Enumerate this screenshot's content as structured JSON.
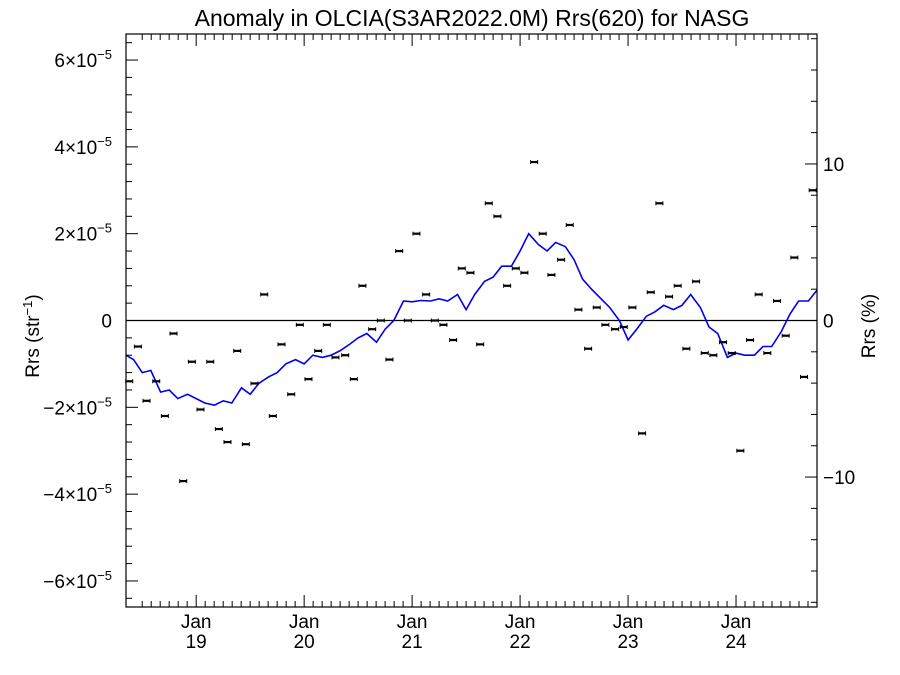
{
  "chart_data": {
    "type": "line",
    "title": "Anomaly in OLCIA(S3AR2022.0M) Rrs(620) for NASG",
    "ylabel_left": "Rrs (str",
    "ylabel_left_sup": "−1",
    "ylabel_left_close": ")",
    "ylabel_right": "Rrs (%)",
    "xlim": [
      2018.35,
      2024.75
    ],
    "ylim": [
      -6.6e-05,
      6.6e-05
    ],
    "ylim_right": [
      -18.3,
      18.3
    ],
    "grid": false,
    "y_ticks_left": [
      {
        "value": 6e-05,
        "mant": "6×10",
        "exp": "−5"
      },
      {
        "value": 4e-05,
        "mant": "4×10",
        "exp": "−5"
      },
      {
        "value": 2e-05,
        "mant": "2×10",
        "exp": "−5"
      },
      {
        "value": 0,
        "mant": "0",
        "exp": ""
      },
      {
        "value": -2e-05,
        "mant": "−2×10",
        "exp": "−5"
      },
      {
        "value": -4e-05,
        "mant": "−4×10",
        "exp": "−5"
      },
      {
        "value": -6e-05,
        "mant": "−6×10",
        "exp": "−5"
      }
    ],
    "y_ticks_right": [
      {
        "value": 10,
        "label": "10"
      },
      {
        "value": 0,
        "label": "0"
      },
      {
        "value": -10,
        "label": "−10"
      }
    ],
    "x_ticks": [
      {
        "value": 2019.0,
        "month": "Jan",
        "year": "19"
      },
      {
        "value": 2020.0,
        "month": "Jan",
        "year": "20"
      },
      {
        "value": 2021.0,
        "month": "Jan",
        "year": "21"
      },
      {
        "value": 2022.0,
        "month": "Jan",
        "year": "22"
      },
      {
        "value": 2023.0,
        "month": "Jan",
        "year": "23"
      },
      {
        "value": 2024.0,
        "month": "Jan",
        "year": "24"
      }
    ],
    "series": [
      {
        "kind": "points",
        "color": "#000000",
        "x": [
          2018.38,
          2018.46,
          2018.54,
          2018.63,
          2018.71,
          2018.79,
          2018.88,
          2018.96,
          2019.04,
          2019.13,
          2019.21,
          2019.29,
          2019.38,
          2019.46,
          2019.54,
          2019.63,
          2019.71,
          2019.79,
          2019.88,
          2019.96,
          2020.04,
          2020.13,
          2020.21,
          2020.29,
          2020.38,
          2020.46,
          2020.54,
          2020.63,
          2020.71,
          2020.79,
          2020.88,
          2020.96,
          2021.04,
          2021.13,
          2021.21,
          2021.29,
          2021.38,
          2021.46,
          2021.54,
          2021.63,
          2021.71,
          2021.79,
          2021.88,
          2021.96,
          2022.04,
          2022.13,
          2022.21,
          2022.29,
          2022.38,
          2022.46,
          2022.54,
          2022.63,
          2022.71,
          2022.79,
          2022.88,
          2022.96,
          2023.04,
          2023.13,
          2023.21,
          2023.29,
          2023.38,
          2023.46,
          2023.54,
          2023.63,
          2023.71,
          2023.79,
          2023.88,
          2023.96,
          2024.04,
          2024.13,
          2024.21,
          2024.29,
          2024.38,
          2024.46,
          2024.54,
          2024.63,
          2024.71
        ],
        "y": [
          -1.4e-05,
          -6e-06,
          -1.85e-05,
          -1.4e-05,
          -2.2e-05,
          -3e-06,
          -3.7e-05,
          -9.5e-06,
          -2.05e-05,
          -9.5e-06,
          -2.5e-05,
          -2.8e-05,
          -7e-06,
          -2.85e-05,
          -1.45e-05,
          6e-06,
          -2.2e-05,
          -5.5e-06,
          -1.7e-05,
          -1e-06,
          -1.35e-05,
          -7e-06,
          -1e-06,
          -8.5e-06,
          -8e-06,
          -1.35e-05,
          8e-06,
          -2e-06,
          0,
          -9e-06,
          1.6e-05,
          0,
          2e-05,
          6e-06,
          0,
          -1e-06,
          -4.5e-06,
          1.2e-05,
          1.1e-05,
          -5.5e-06,
          2.7e-05,
          2.4e-05,
          8e-06,
          1.2e-05,
          1.1e-05,
          3.65e-05,
          2e-05,
          1.05e-05,
          1.4e-05,
          2.2e-05,
          2.5e-06,
          -6.5e-06,
          3e-06,
          -1e-06,
          -2e-06,
          -1.5e-06,
          3e-06,
          -2.6e-05,
          6.5e-06,
          2.7e-05,
          5.5e-06,
          8e-06,
          -6.5e-06,
          9e-06,
          -7.5e-06,
          -8e-06,
          -5e-06,
          -7.5e-06,
          -3e-05,
          -4.5e-06,
          6e-06,
          -7.5e-06,
          4.5e-06,
          -3.5e-06,
          1.45e-05,
          -1.3e-05,
          3e-05
        ]
      },
      {
        "kind": "line",
        "color": "#0000ee",
        "x": [
          2018.35,
          2018.42,
          2018.5,
          2018.58,
          2018.67,
          2018.75,
          2018.83,
          2018.92,
          2019.0,
          2019.08,
          2019.17,
          2019.25,
          2019.33,
          2019.42,
          2019.5,
          2019.58,
          2019.67,
          2019.75,
          2019.83,
          2019.92,
          2020.0,
          2020.08,
          2020.17,
          2020.25,
          2020.33,
          2020.42,
          2020.5,
          2020.58,
          2020.67,
          2020.75,
          2020.83,
          2020.92,
          2021.0,
          2021.08,
          2021.17,
          2021.25,
          2021.33,
          2021.42,
          2021.5,
          2021.58,
          2021.67,
          2021.75,
          2021.83,
          2021.92,
          2022.0,
          2022.08,
          2022.17,
          2022.25,
          2022.33,
          2022.42,
          2022.5,
          2022.58,
          2022.67,
          2022.75,
          2022.83,
          2022.92,
          2023.0,
          2023.08,
          2023.17,
          2023.25,
          2023.33,
          2023.42,
          2023.5,
          2023.58,
          2023.67,
          2023.75,
          2023.83,
          2023.92,
          2024.0,
          2024.08,
          2024.17,
          2024.25,
          2024.33,
          2024.42,
          2024.5,
          2024.58,
          2024.67,
          2024.75
        ],
        "y": [
          -8e-06,
          -9e-06,
          -1.2e-05,
          -1.15e-05,
          -1.65e-05,
          -1.6e-05,
          -1.8e-05,
          -1.7e-05,
          -1.8e-05,
          -1.9e-05,
          -1.95e-05,
          -1.85e-05,
          -1.9e-05,
          -1.55e-05,
          -1.7e-05,
          -1.45e-05,
          -1.3e-05,
          -1.2e-05,
          -1e-05,
          -9e-06,
          -1e-05,
          -8e-06,
          -8.5e-06,
          -8e-06,
          -7e-06,
          -5.5e-06,
          -4e-06,
          -3e-06,
          -5e-06,
          -2e-06,
          0,
          4.5e-06,
          4.3e-06,
          4.6e-06,
          4.5e-06,
          5e-06,
          4.5e-06,
          6e-06,
          2.5e-06,
          6e-06,
          9e-06,
          1e-05,
          1.25e-05,
          1.25e-05,
          1.6e-05,
          2e-05,
          1.75e-05,
          1.6e-05,
          1.8e-05,
          1.7e-05,
          1.4e-05,
          9.5e-06,
          7e-06,
          5e-06,
          3e-06,
          0,
          -4.5e-06,
          -2e-06,
          1e-06,
          2e-06,
          3.5e-06,
          2.5e-06,
          3.5e-06,
          6e-06,
          3e-06,
          -1.5e-06,
          -3e-06,
          -8.5e-06,
          -7.5e-06,
          -8e-06,
          -8e-06,
          -6e-06,
          -6e-06,
          -2.5e-06,
          1.5e-06,
          4.5e-06,
          4.5e-06,
          7e-06
        ]
      }
    ]
  }
}
